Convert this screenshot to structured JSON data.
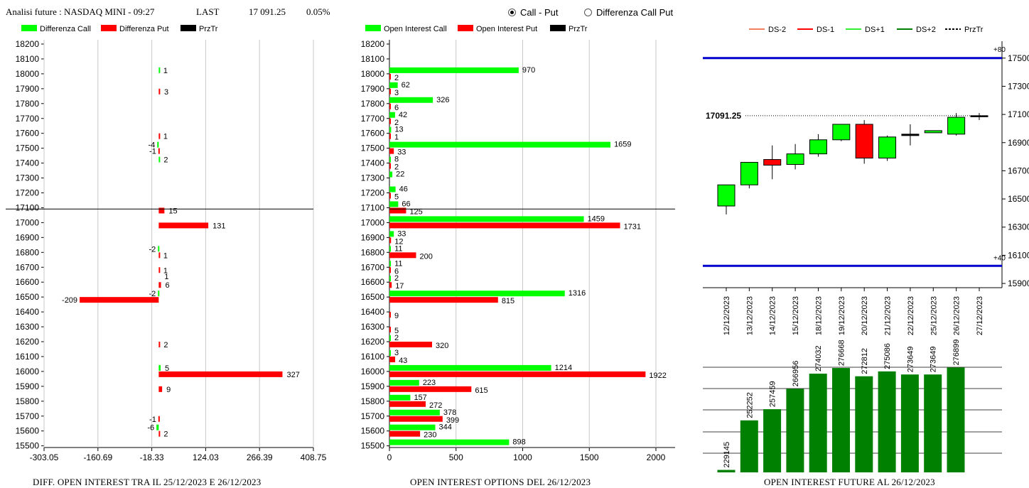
{
  "header": {
    "title": "Analisi future : NASDAQ MINI - 09:27",
    "last_label": "LAST",
    "last_value": "17 091.25",
    "pct": "0.05%"
  },
  "view_options": [
    {
      "label": "Call - Put",
      "selected": true
    },
    {
      "label": "Differenza Call Put",
      "selected": false
    }
  ],
  "footers": {
    "diff": "DIFF. OPEN INTEREST TRA IL 25/12/2023 E 26/12/2023",
    "oi": "OPEN INTEREST OPTIONS DEL 26/12/2023",
    "fut": "OPEN INTEREST FUTURE AL 26/12/2023"
  },
  "colors": {
    "call": "#00ff00",
    "put": "#ff0000",
    "prz": "#000000",
    "dark_green": "#008000",
    "blue": "#0000cc"
  },
  "chart_data": [
    {
      "id": "diff",
      "type": "bar",
      "orientation": "horizontal",
      "legend": [
        "Differenza Call",
        "Differenza Put",
        "PrzTr"
      ],
      "strikes": [
        18200,
        18100,
        18000,
        17900,
        17800,
        17700,
        17600,
        17500,
        17400,
        17300,
        17200,
        17100,
        17000,
        16900,
        16800,
        16700,
        16600,
        16500,
        16400,
        16300,
        16200,
        16100,
        16000,
        15900,
        15800,
        15700,
        15600,
        15500
      ],
      "x_ticks": [
        "-303.05",
        "-160.69",
        "-18.33",
        "124.03",
        "266.39",
        "408.75"
      ],
      "xlim": [
        -303.05,
        408.75
      ],
      "series": [
        {
          "name": "Differenza Call",
          "values": [
            null,
            null,
            1,
            null,
            null,
            null,
            null,
            -4,
            2,
            null,
            null,
            null,
            null,
            null,
            -2,
            null,
            null,
            -2,
            null,
            null,
            null,
            null,
            5,
            null,
            null,
            null,
            -6,
            null
          ]
        },
        {
          "name": "Differenza Put",
          "values": [
            null,
            null,
            null,
            3,
            null,
            null,
            1,
            -1,
            null,
            null,
            null,
            15,
            131,
            null,
            1,
            1,
            6,
            -209,
            null,
            null,
            2,
            null,
            327,
            9,
            null,
            -1,
            2,
            null
          ]
        }
      ],
      "extra_labels": [
        {
          "strike": 16600,
          "text": "1"
        }
      ],
      "prz_tr": 17091.25
    },
    {
      "id": "oi",
      "type": "bar",
      "orientation": "horizontal",
      "legend": [
        "Open Interest Call",
        "Open Interest Put",
        "PrzTr"
      ],
      "strikes": [
        18200,
        18100,
        18000,
        17900,
        17800,
        17700,
        17600,
        17500,
        17400,
        17300,
        17200,
        17100,
        17000,
        16900,
        16800,
        16700,
        16600,
        16500,
        16400,
        16300,
        16200,
        16100,
        16000,
        15900,
        15800,
        15700,
        15600,
        15500
      ],
      "x_ticks": [
        "0",
        "500",
        "1000",
        "1500",
        "2000"
      ],
      "xlim": [
        0,
        2150
      ],
      "series": [
        {
          "name": "Open Interest Call",
          "values": [
            null,
            null,
            970,
            62,
            326,
            42,
            13,
            1659,
            8,
            22,
            46,
            66,
            1459,
            33,
            11,
            11,
            2,
            1316,
            null,
            null,
            2,
            3,
            1214,
            223,
            157,
            378,
            344,
            898
          ]
        },
        {
          "name": "Open Interest Put",
          "values": [
            null,
            null,
            2,
            3,
            6,
            2,
            1,
            33,
            2,
            null,
            5,
            125,
            1731,
            12,
            200,
            6,
            17,
            815,
            9,
            5,
            320,
            43,
            1922,
            615,
            272,
            399,
            230,
            null
          ]
        }
      ],
      "prz_tr": 17091.25
    },
    {
      "id": "candles",
      "type": "candlestick",
      "legend": [
        "DS-2",
        "DS-1",
        "DS+1",
        "DS+2",
        "PrzTr"
      ],
      "legend_colors": [
        "#f08060",
        "#ff0000",
        "#33ee33",
        "#008000",
        "#000000"
      ],
      "y_ticks": [
        "17500",
        "17300",
        "17100",
        "16900",
        "16700",
        "16500",
        "16300",
        "16100",
        "15900"
      ],
      "ylim": [
        15870,
        17620
      ],
      "dates": [
        "12/12/2023",
        "13/12/2023",
        "14/12/2023",
        "15/12/2023",
        "18/12/2023",
        "19/12/2023",
        "20/12/2023",
        "21/12/2023",
        "22/12/2023",
        "25/12/2023",
        "26/12/2023",
        "27/12/2023"
      ],
      "ohlc": [
        [
          16450,
          16600,
          16390,
          16600
        ],
        [
          16600,
          16760,
          16575,
          16760
        ],
        [
          16780,
          16880,
          16640,
          16740
        ],
        [
          16745,
          16890,
          16710,
          16820
        ],
        [
          16820,
          16960,
          16800,
          16920
        ],
        [
          16920,
          17030,
          16910,
          17030
        ],
        [
          17030,
          17060,
          16750,
          16790
        ],
        [
          16790,
          16950,
          16770,
          16940
        ],
        [
          16950,
          17030,
          16880,
          16960
        ],
        [
          16970,
          16980,
          16970,
          16985
        ],
        [
          16960,
          17110,
          16950,
          17080
        ],
        [
          17090,
          17110,
          17060,
          17091
        ]
      ],
      "price_label": "17091.25",
      "prz_tr": 17091.25,
      "upper_line": 17500,
      "upper_label": "+80",
      "lower_line": 16025,
      "lower_label": "+40"
    },
    {
      "id": "futoi",
      "type": "bar",
      "categories": [
        "12/12/2023",
        "13/12/2023",
        "14/12/2023",
        "15/12/2023",
        "18/12/2023",
        "19/12/2023",
        "20/12/2023",
        "21/12/2023",
        "22/12/2023",
        "25/12/2023",
        "26/12/2023"
      ],
      "values": [
        229145,
        252252,
        257459,
        266956,
        274032,
        276668,
        272812,
        275086,
        273649,
        273649,
        276899
      ],
      "ylim": [
        228000,
        281000
      ]
    }
  ]
}
